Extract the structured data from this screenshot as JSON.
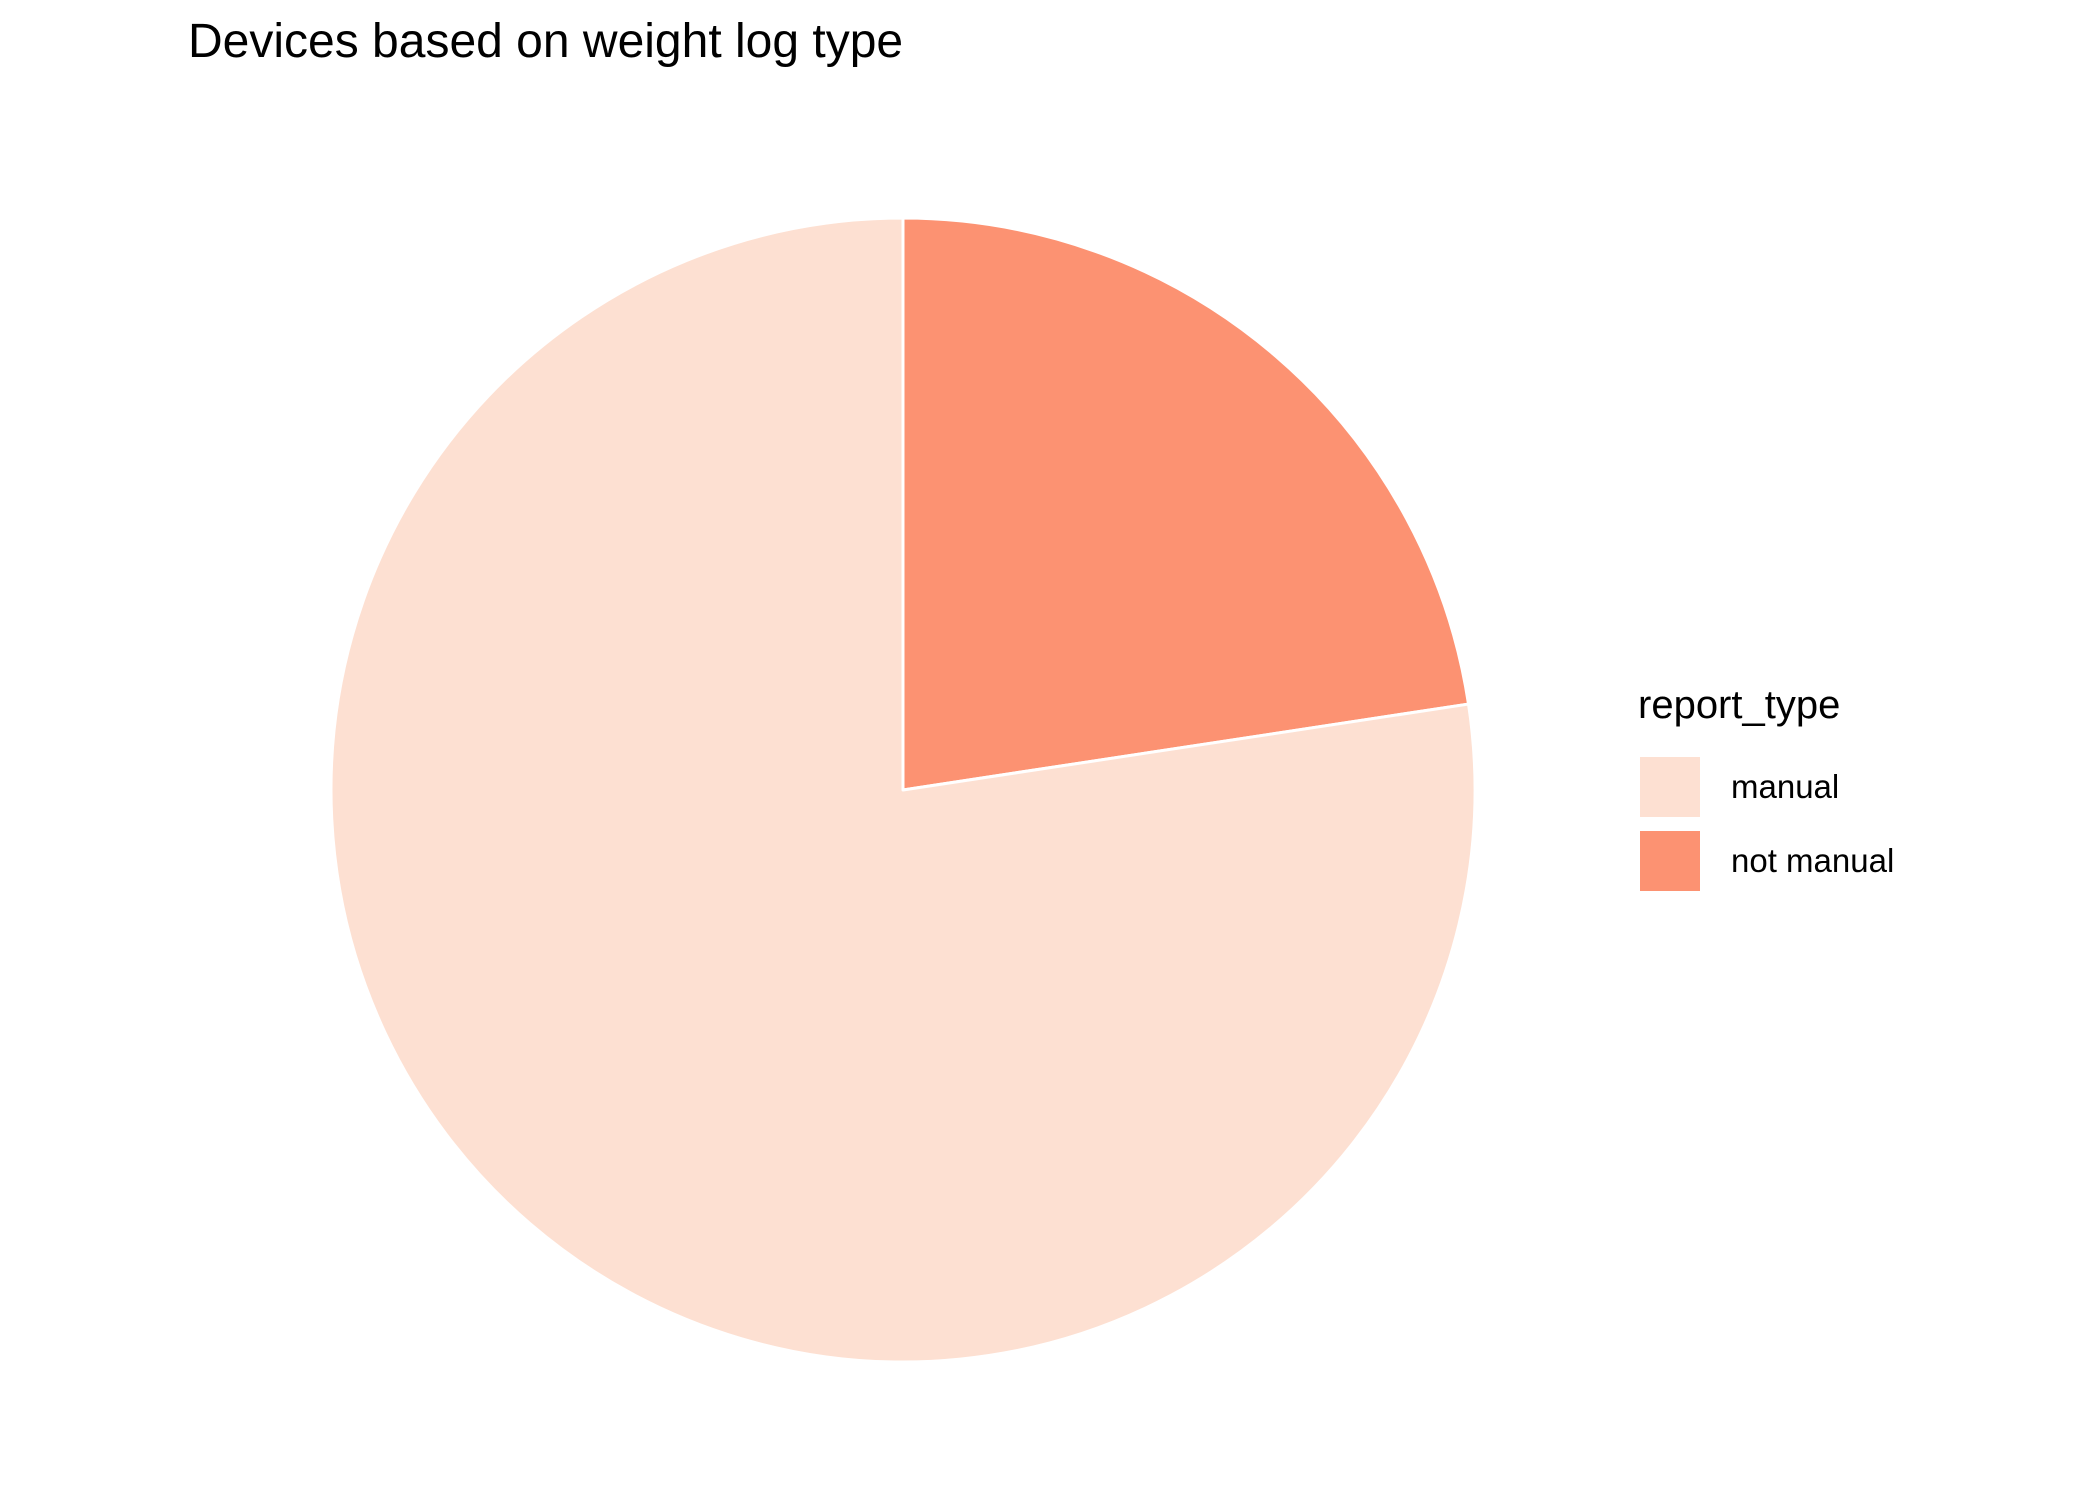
{
  "chart_data": {
    "type": "pie",
    "title": "Devices based on weight log type",
    "legend_title": "report_type",
    "legend_position": "right",
    "start": "top",
    "direction": "clockwise",
    "slices": [
      {
        "label": "not manual",
        "value": 22.6,
        "color": "#FC9272"
      },
      {
        "label": "manual",
        "value": 77.4,
        "color": "#FDE0D2"
      }
    ],
    "legend": [
      {
        "label": "manual",
        "color": "#FDE0D2"
      },
      {
        "label": "not manual",
        "color": "#FC9272"
      }
    ],
    "slice_border_color": "#FFFFFF"
  }
}
